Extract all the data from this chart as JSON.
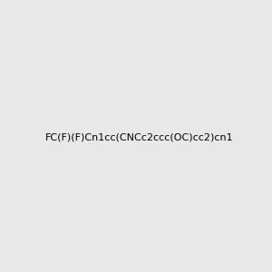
{
  "smiles": "FC(F)(F)Cn1cc(CNCc2ccc(OC)cc2)cn1",
  "image_size": 300,
  "background_color": "#e8e8e8",
  "title": ""
}
